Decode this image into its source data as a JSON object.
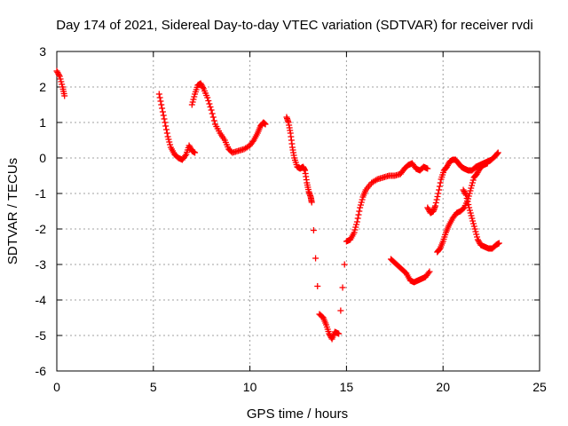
{
  "chart_data": {
    "type": "scatter",
    "title": "Day 174 of 2021, Sidereal Day-to-day VTEC variation (SDTVAR) for receiver rvdi",
    "xlabel": "GPS time / hours",
    "ylabel": "SDTVAR / TECUs",
    "xlim": [
      0,
      25
    ],
    "ylim": [
      -6,
      3
    ],
    "x_ticks": [
      "0",
      "5",
      "10",
      "15",
      "20",
      "25"
    ],
    "y_ticks": [
      "3",
      "2",
      "1",
      "0",
      "-1",
      "-2",
      "-3",
      "-4",
      "-5",
      "-6"
    ],
    "x_tick_values": [
      0,
      5,
      10,
      15,
      20,
      25
    ],
    "y_tick_values": [
      3,
      2,
      1,
      0,
      -1,
      -2,
      -3,
      -4,
      -5,
      -6
    ],
    "grid": true,
    "marker": "+",
    "color": "#ff0000",
    "series": [
      {
        "points": [
          [
            0.0,
            2.45
          ],
          [
            0.15,
            2.3
          ],
          [
            0.3,
            2.0
          ],
          [
            0.4,
            1.75
          ],
          [
            5.3,
            1.8
          ],
          [
            5.45,
            1.4
          ],
          [
            5.6,
            1.0
          ],
          [
            5.75,
            0.6
          ],
          [
            5.9,
            0.3
          ],
          [
            6.1,
            0.1
          ],
          [
            6.3,
            0.0
          ],
          [
            6.5,
            -0.05
          ],
          [
            6.7,
            0.1
          ],
          [
            6.85,
            0.35
          ],
          [
            7.0,
            0.2
          ],
          [
            7.15,
            0.15
          ],
          [
            7.0,
            1.5
          ],
          [
            7.15,
            1.8
          ],
          [
            7.3,
            2.05
          ],
          [
            7.45,
            2.1
          ],
          [
            7.6,
            1.95
          ],
          [
            7.8,
            1.7
          ],
          [
            8.0,
            1.35
          ],
          [
            8.2,
            0.95
          ],
          [
            8.45,
            0.7
          ],
          [
            8.7,
            0.5
          ],
          [
            8.9,
            0.25
          ],
          [
            9.1,
            0.15
          ],
          [
            9.4,
            0.2
          ],
          [
            9.7,
            0.25
          ],
          [
            10.0,
            0.35
          ],
          [
            10.2,
            0.5
          ],
          [
            10.4,
            0.7
          ],
          [
            10.55,
            0.9
          ],
          [
            10.7,
            1.0
          ],
          [
            10.8,
            0.95
          ],
          [
            11.9,
            1.15
          ],
          [
            12.0,
            1.0
          ],
          [
            12.1,
            0.7
          ],
          [
            12.2,
            0.3
          ],
          [
            12.3,
            0.0
          ],
          [
            12.45,
            -0.25
          ],
          [
            12.6,
            -0.3
          ],
          [
            12.75,
            -0.25
          ],
          [
            12.85,
            -0.35
          ],
          [
            12.95,
            -0.7
          ],
          [
            13.05,
            -0.95
          ],
          [
            13.15,
            -1.1
          ],
          [
            13.2,
            -1.25
          ],
          [
            13.6,
            -4.4
          ],
          [
            13.8,
            -4.5
          ],
          [
            13.95,
            -4.7
          ],
          [
            14.1,
            -4.95
          ],
          [
            14.25,
            -5.1
          ],
          [
            14.4,
            -4.9
          ],
          [
            14.6,
            -4.95
          ],
          [
            15.0,
            -2.35
          ],
          [
            15.2,
            -2.3
          ],
          [
            15.4,
            -2.1
          ],
          [
            15.55,
            -1.8
          ],
          [
            15.7,
            -1.4
          ],
          [
            15.85,
            -1.1
          ],
          [
            16.0,
            -0.9
          ],
          [
            16.3,
            -0.7
          ],
          [
            16.6,
            -0.6
          ],
          [
            16.9,
            -0.55
          ],
          [
            17.2,
            -0.5
          ],
          [
            17.5,
            -0.5
          ],
          [
            17.8,
            -0.45
          ],
          [
            18.0,
            -0.3
          ],
          [
            18.2,
            -0.2
          ],
          [
            18.4,
            -0.15
          ],
          [
            18.6,
            -0.3
          ],
          [
            18.8,
            -0.35
          ],
          [
            19.0,
            -0.25
          ],
          [
            19.2,
            -0.3
          ],
          [
            17.3,
            -2.85
          ],
          [
            17.5,
            -2.95
          ],
          [
            17.7,
            -3.05
          ],
          [
            17.9,
            -3.15
          ],
          [
            18.1,
            -3.25
          ],
          [
            18.3,
            -3.45
          ],
          [
            18.5,
            -3.5
          ],
          [
            18.7,
            -3.45
          ],
          [
            18.9,
            -3.4
          ],
          [
            19.1,
            -3.35
          ],
          [
            19.3,
            -3.2
          ],
          [
            19.2,
            -1.4
          ],
          [
            19.35,
            -1.55
          ],
          [
            19.5,
            -1.5
          ],
          [
            19.6,
            -1.35
          ],
          [
            19.75,
            -1.0
          ],
          [
            19.9,
            -0.6
          ],
          [
            20.05,
            -0.35
          ],
          [
            20.2,
            -0.25
          ],
          [
            20.35,
            -0.1
          ],
          [
            20.5,
            -0.05
          ],
          [
            20.65,
            -0.05
          ],
          [
            20.8,
            -0.15
          ],
          [
            20.95,
            -0.25
          ],
          [
            21.1,
            -0.3
          ],
          [
            21.3,
            -0.35
          ],
          [
            21.5,
            -0.35
          ],
          [
            21.7,
            -0.25
          ],
          [
            21.9,
            -0.2
          ],
          [
            22.1,
            -0.15
          ],
          [
            22.3,
            -0.1
          ],
          [
            22.5,
            -0.05
          ],
          [
            22.7,
            0.05
          ],
          [
            22.85,
            0.15
          ],
          [
            19.7,
            -2.65
          ],
          [
            19.85,
            -2.55
          ],
          [
            20.0,
            -2.35
          ],
          [
            20.15,
            -2.1
          ],
          [
            20.3,
            -1.9
          ],
          [
            20.5,
            -1.7
          ],
          [
            20.7,
            -1.55
          ],
          [
            20.9,
            -1.5
          ],
          [
            21.1,
            -1.4
          ],
          [
            21.3,
            -1.15
          ],
          [
            21.45,
            -0.85
          ],
          [
            21.6,
            -0.55
          ],
          [
            21.75,
            -0.45
          ],
          [
            21.9,
            -0.3
          ],
          [
            22.1,
            -0.2
          ],
          [
            22.3,
            -0.15
          ],
          [
            21.05,
            -0.9
          ],
          [
            21.2,
            -1.05
          ],
          [
            21.35,
            -1.4
          ],
          [
            21.5,
            -1.7
          ],
          [
            21.65,
            -2.0
          ],
          [
            21.8,
            -2.3
          ],
          [
            21.95,
            -2.45
          ],
          [
            22.15,
            -2.5
          ],
          [
            22.35,
            -2.55
          ],
          [
            22.55,
            -2.55
          ],
          [
            22.75,
            -2.45
          ],
          [
            22.9,
            -2.4
          ]
        ]
      }
    ]
  }
}
